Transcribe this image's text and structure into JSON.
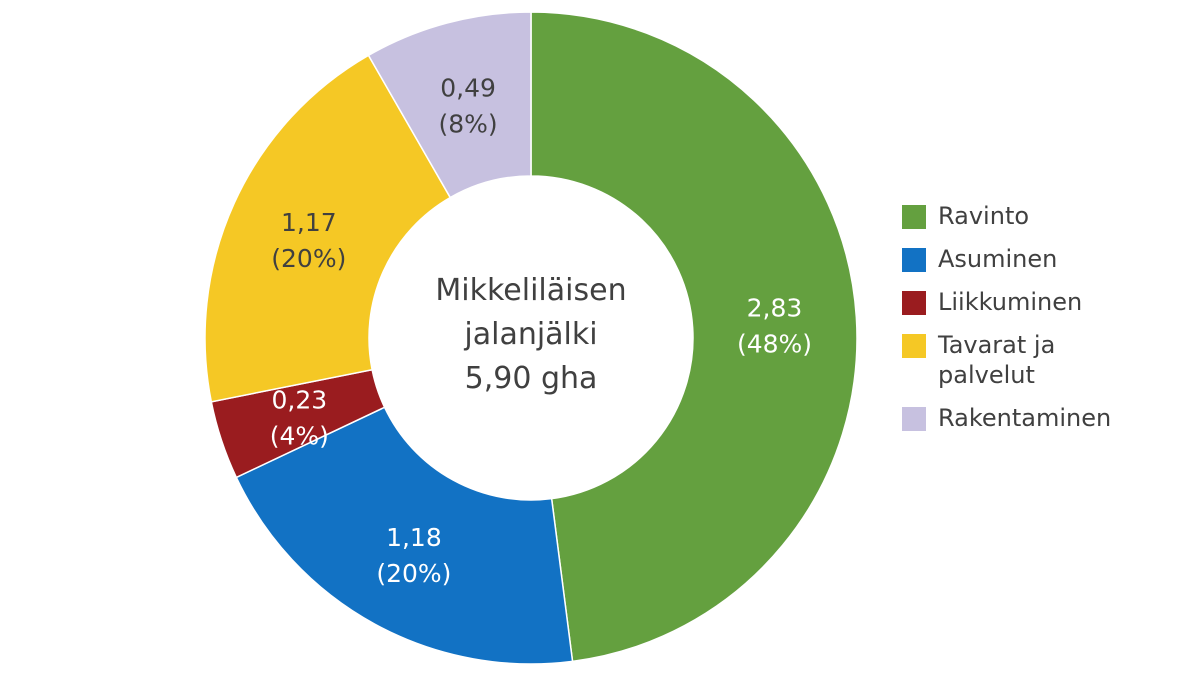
{
  "chart_data": {
    "type": "pie",
    "title": "",
    "center_text": [
      "Mikkeliläisen",
      "jalanjälki",
      "5,90 gha"
    ],
    "total": 5.9,
    "total_unit": "gha",
    "slices": [
      {
        "label": "Ravinto",
        "value": 2.83,
        "value_text": "2,83",
        "percent": 48,
        "percent_text": "(48%)",
        "color": "#64a03f",
        "label_color": "#ffffff"
      },
      {
        "label": "Asuminen",
        "value": 1.18,
        "value_text": "1,18",
        "percent": 20,
        "percent_text": "(20%)",
        "color": "#1272c4",
        "label_color": "#ffffff"
      },
      {
        "label": "Liikkuminen",
        "value": 0.23,
        "value_text": "0,23",
        "percent": 4,
        "percent_text": "(4%)",
        "color": "#9a1c1f",
        "label_color": "#ffffff"
      },
      {
        "label": "Tavarat ja palvelut",
        "value": 1.17,
        "value_text": "1,17",
        "percent": 20,
        "percent_text": "(20%)",
        "color": "#f5c825",
        "label_color": "#404040"
      },
      {
        "label": "Rakentaminen",
        "value": 0.49,
        "value_text": "0,49",
        "percent": 8,
        "percent_text": "(8%)",
        "color": "#c7c1e0",
        "label_color": "#404040"
      }
    ],
    "legend_position": "right",
    "legend": [
      {
        "lines": [
          "Ravinto"
        ],
        "color": "#64a03f"
      },
      {
        "lines": [
          "Asuminen"
        ],
        "color": "#1272c4"
      },
      {
        "lines": [
          "Liikkuminen"
        ],
        "color": "#9a1c1f"
      },
      {
        "lines": [
          "Tavarat ja",
          "palvelut"
        ],
        "color": "#f5c825"
      },
      {
        "lines": [
          "Rakentaminen"
        ],
        "color": "#c7c1e0"
      }
    ]
  }
}
